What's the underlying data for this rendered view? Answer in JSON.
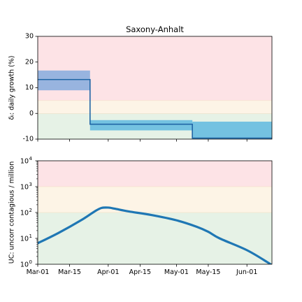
{
  "chart_data": [
    {
      "type": "line",
      "title": "Saxony-Anhalt",
      "ylabel": "δᵢ: daily growth (%)",
      "xlabel": "",
      "x_range": [
        "2020-03-01",
        "2020-06-12"
      ],
      "ylim": [
        -10,
        30
      ],
      "yticks": [
        -10,
        0,
        10,
        20,
        30
      ],
      "zones": [
        {
          "name": "red",
          "from": 5,
          "to": 30,
          "color": "#fde3e6"
        },
        {
          "name": "yellow",
          "from": 0,
          "to": 5,
          "color": "#fdf4e6"
        },
        {
          "name": "green",
          "from": -10,
          "to": 0,
          "color": "#e6f2e6"
        }
      ],
      "series": [
        {
          "segments": [
            {
              "start": "2020-03-01",
              "end": "2020-03-24",
              "value": 13.2,
              "low": 9.0,
              "high": 16.7,
              "band_color": "#98b4df"
            },
            {
              "start": "2020-03-24",
              "end": "2020-05-08",
              "value": -4.2,
              "low": -6.6,
              "high": -2.6,
              "band_color": "#74c2e1"
            },
            {
              "start": "2020-05-08",
              "end": "2020-06-12",
              "value": -9.6,
              "low": -10.0,
              "high": -3.2,
              "band_color": "#74c2e1"
            }
          ],
          "color": "#2166a6"
        }
      ]
    },
    {
      "type": "line",
      "title": "",
      "ylabel": "UC: uncorr contagious / million",
      "xlabel": "",
      "x_range": [
        "2020-03-01",
        "2020-06-12"
      ],
      "yscale": "log",
      "ylim": [
        1,
        10000
      ],
      "yticks": [
        {
          "value": 1,
          "base": "10",
          "exp": "0"
        },
        {
          "value": 10,
          "base": "10",
          "exp": "1"
        },
        {
          "value": 100,
          "base": "10",
          "exp": "2"
        },
        {
          "value": 1000,
          "base": "10",
          "exp": "3"
        },
        {
          "value": 10000,
          "base": "10",
          "exp": "4"
        }
      ],
      "xticks": [
        "Mar-01",
        "Mar-15",
        "Apr-01",
        "Apr-15",
        "May-01",
        "May-15",
        "Jun-01"
      ],
      "zones": [
        {
          "name": "red",
          "from": 1000,
          "to": 10000,
          "color": "#fde3e6"
        },
        {
          "name": "yellow",
          "from": 100,
          "to": 1000,
          "color": "#fdf4e6"
        },
        {
          "name": "green",
          "from": 1,
          "to": 100,
          "color": "#e6f2e6"
        }
      ],
      "series": [
        {
          "color": "#1f77b4",
          "points": [
            {
              "x": "2020-03-01",
              "y": 6.5
            },
            {
              "x": "2020-03-10",
              "y": 16
            },
            {
              "x": "2020-03-20",
              "y": 50
            },
            {
              "x": "2020-03-26",
              "y": 110
            },
            {
              "x": "2020-03-29",
              "y": 150
            },
            {
              "x": "2020-04-01",
              "y": 155
            },
            {
              "x": "2020-04-04",
              "y": 140
            },
            {
              "x": "2020-04-10",
              "y": 110
            },
            {
              "x": "2020-04-20",
              "y": 80
            },
            {
              "x": "2020-05-01",
              "y": 50
            },
            {
              "x": "2020-05-10",
              "y": 28
            },
            {
              "x": "2020-05-15",
              "y": 18
            },
            {
              "x": "2020-05-20",
              "y": 10
            },
            {
              "x": "2020-06-01",
              "y": 3.5
            },
            {
              "x": "2020-06-10",
              "y": 1.2
            },
            {
              "x": "2020-06-12",
              "y": 0.9
            }
          ]
        }
      ]
    }
  ]
}
